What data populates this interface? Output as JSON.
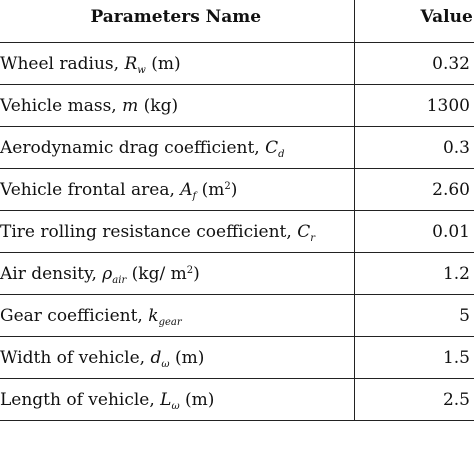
{
  "table": {
    "headers": {
      "parameter": "Parameters Name",
      "value": "Value"
    },
    "rows": [
      {
        "text": "Wheel radius, ",
        "sym": "R",
        "sub": "w",
        "sup": "",
        "unit": " (m)",
        "value": "0.32"
      },
      {
        "text": "Vehicle mass, ",
        "sym": "m",
        "sub": "",
        "sup": "",
        "unit": " (kg)",
        "value": "1300"
      },
      {
        "text": "Aerodynamic drag coefficient, ",
        "sym": "C",
        "sub": "d",
        "sup": "",
        "unit": "",
        "value": "0.3"
      },
      {
        "text": "Vehicle frontal area, ",
        "sym": "A",
        "sub": "f",
        "sup": "",
        "unit": " (m",
        "unit_sup": "2",
        "unit_end": ")",
        "value": "2.60"
      },
      {
        "text": "Tire rolling resistance coefficient, ",
        "sym": "C",
        "sub": "r",
        "sup": "",
        "unit": "",
        "value": "0.01"
      },
      {
        "text": "Air density, ",
        "sym": "ρ",
        "sub": "air",
        "sup": "",
        "unit": " (kg/ m",
        "unit_sup": "2",
        "unit_end": ")",
        "value": "1.2"
      },
      {
        "text": "Gear coefficient, ",
        "sym": "k",
        "sub": "gear",
        "sup": "",
        "unit": "",
        "value": "5"
      },
      {
        "text": "Width of vehicle, ",
        "sym": "d",
        "sub": "ω",
        "sup": "",
        "unit": " (m)",
        "value": "1.5"
      },
      {
        "text": "Length of vehicle, ",
        "sym": "L",
        "sub": "ω",
        "sup": "",
        "unit": " (m)",
        "value": "2.5"
      }
    ]
  }
}
